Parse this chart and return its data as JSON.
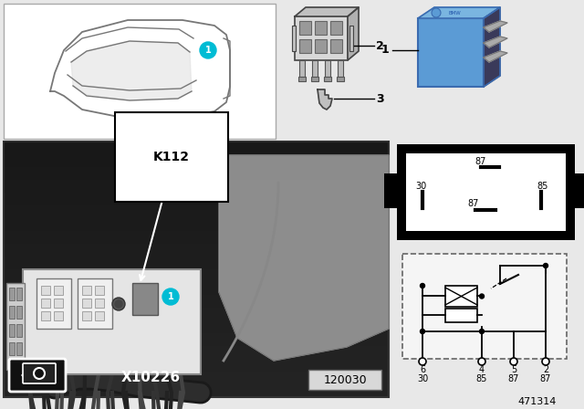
{
  "bg_color": "#e8e8e8",
  "part_number": "471314",
  "ref_number": "120030",
  "cyan_badge_color": "#00bcd4",
  "relay_blue_color": "#5b9bd5",
  "pin_labels_top_num": [
    "6",
    "4",
    "5",
    "2"
  ],
  "pin_labels_top_label": [
    "30",
    "85",
    "87",
    "87"
  ],
  "K112_label": "K112",
  "X10226_label": "X10226",
  "connector_label2": "2",
  "connector_label3": "3",
  "relay_label": "1"
}
